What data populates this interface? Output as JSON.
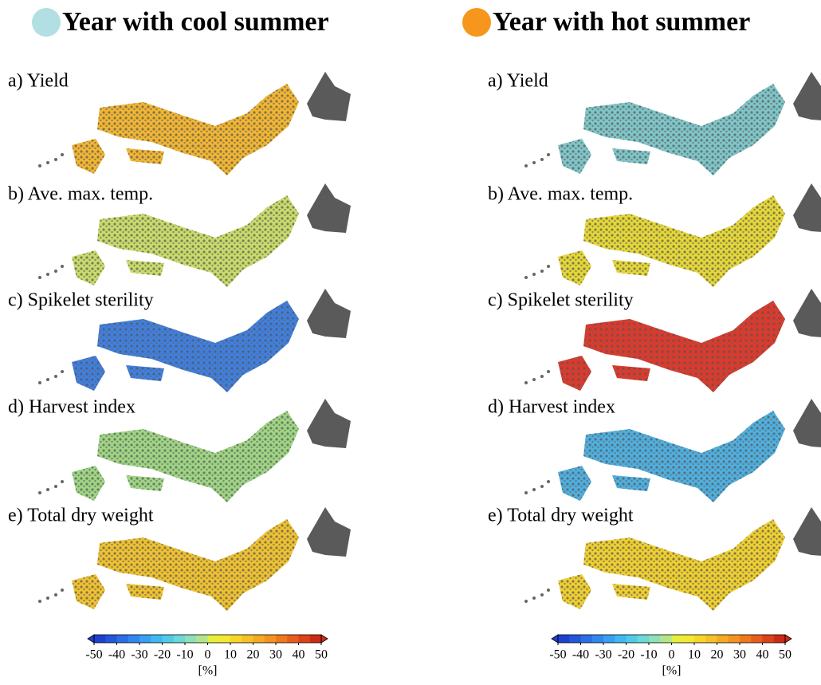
{
  "panels": [
    {
      "title": "Year with cool summer",
      "marker_color": "#b2dfe3",
      "maps": [
        {
          "label": "a) Yield",
          "color": "#f2b632"
        },
        {
          "label": "b) Ave. max. temp.",
          "color": "#c9dc6a"
        },
        {
          "label": "c) Spikelet sterility",
          "color": "#3f7fe0"
        },
        {
          "label": "d) Harvest index",
          "color": "#9fd684"
        },
        {
          "label": "e) Total dry weight",
          "color": "#f0c230"
        }
      ],
      "colorbar": {
        "ticks": [
          -50,
          -40,
          -30,
          -20,
          -10,
          0,
          10,
          20,
          30,
          40,
          50
        ],
        "unit": "[%]"
      }
    },
    {
      "title": "Year with hot summer",
      "marker_color": "#f7961d",
      "maps": [
        {
          "label": "a) Yield",
          "color": "#7fc6c9"
        },
        {
          "label": "b) Ave. max. temp.",
          "color": "#e6d837"
        },
        {
          "label": "c) Spikelet sterility",
          "color": "#e0382a"
        },
        {
          "label": "d) Harvest index",
          "color": "#4fb0e0"
        },
        {
          "label": "e) Total dry weight",
          "color": "#f0d030"
        }
      ],
      "colorbar": {
        "ticks": [
          -50,
          -40,
          -30,
          -20,
          -10,
          0,
          10,
          20,
          30,
          40,
          50
        ],
        "unit": "[%]"
      }
    }
  ],
  "colorbar_colors": [
    "#1f3fd0",
    "#2456dc",
    "#2a6ee6",
    "#3087ee",
    "#37a0f0",
    "#3fb8f0",
    "#4fcbe8",
    "#6bd8da",
    "#8ee0b8",
    "#b3e68c",
    "#e6ef3c",
    "#f3e92e",
    "#f7d629",
    "#f7c026",
    "#f5aa22",
    "#f2941f",
    "#ee7a1c",
    "#e65e1a",
    "#db4318",
    "#cc2a16"
  ]
}
